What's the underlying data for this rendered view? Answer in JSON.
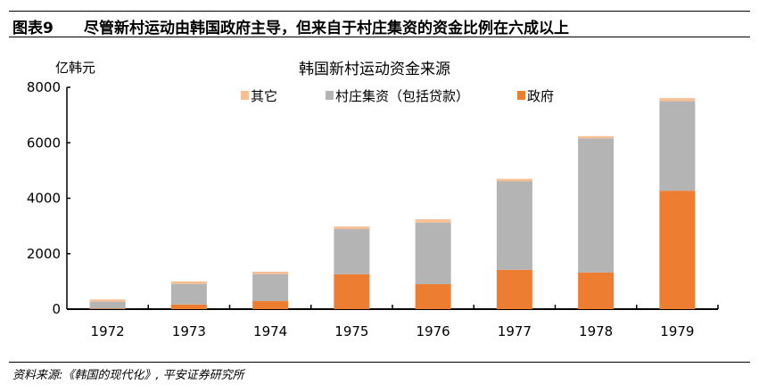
{
  "figure": {
    "number": "图表9",
    "title": "尽管新村运动由韩国政府主导，但来自于村庄集资的资金比例在六成以上",
    "source": "资料来源:《韩国的现代化》, 平安证券研究所"
  },
  "chart_data": {
    "type": "bar",
    "stacked": true,
    "title": "韩国新村运动资金来源",
    "ylabel": "亿韩元",
    "xlabel": "",
    "ylim": [
      0,
      8000
    ],
    "yticks": [
      "0",
      "2000",
      "4000",
      "6000",
      "8000"
    ],
    "grid": false,
    "legend_position": "top-center",
    "categories": [
      "1972",
      "1973",
      "1974",
      "1975",
      "1976",
      "1977",
      "1978",
      "1979"
    ],
    "series": [
      {
        "name": "政府",
        "color": "#ED7D31",
        "values": [
          20,
          170,
          290,
          1260,
          900,
          1420,
          1320,
          4270
        ]
      },
      {
        "name": "村庄集资（包括贷款）",
        "color": "#B4B4B4",
        "values": [
          250,
          740,
          975,
          1630,
          2220,
          3190,
          4840,
          3230
        ]
      },
      {
        "name": "其它",
        "color": "#F8BF94",
        "values": [
          80,
          90,
          85,
          90,
          120,
          90,
          80,
          110
        ]
      }
    ],
    "legend_order": [
      "其它",
      "村庄集资（包括贷款）",
      "政府"
    ]
  }
}
